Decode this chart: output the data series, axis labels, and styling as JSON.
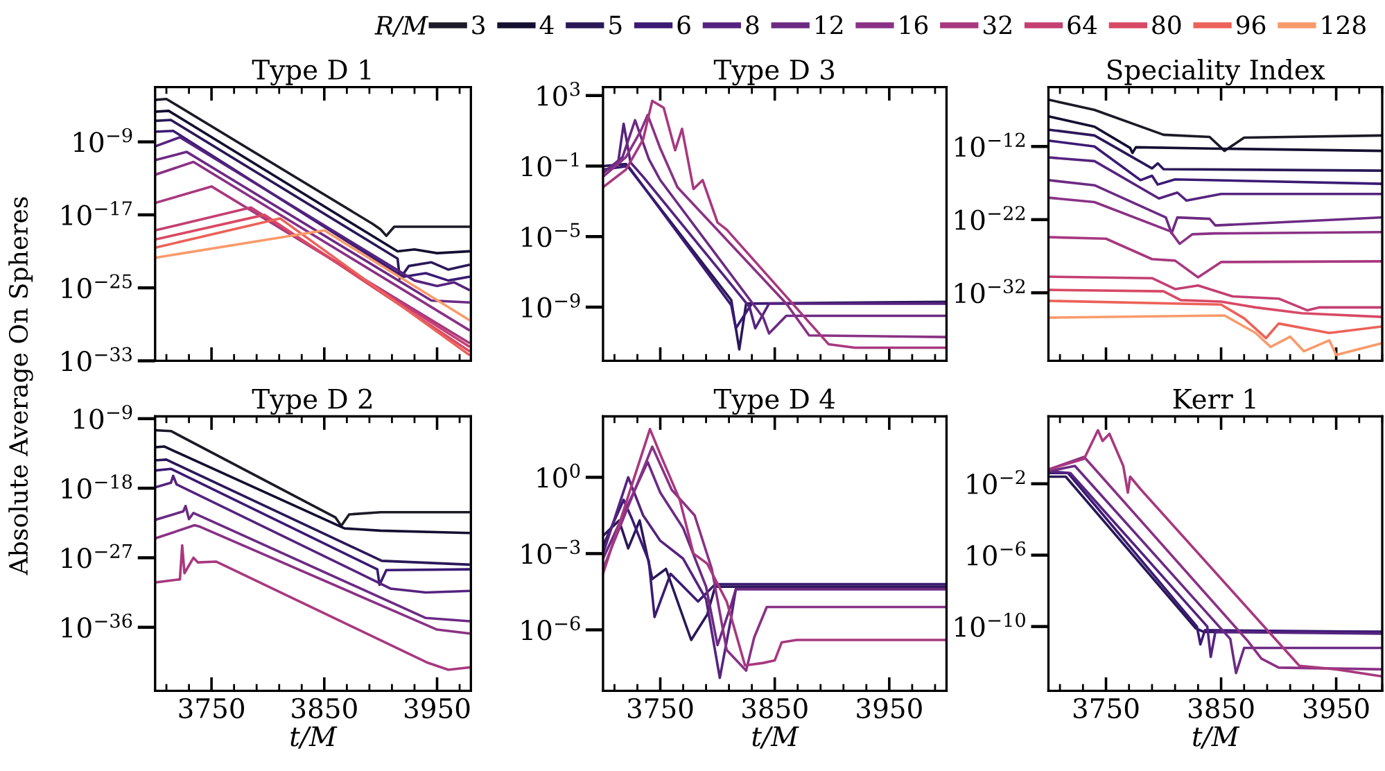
{
  "chart_data": [
    {
      "type": "line",
      "title": "Type D 1",
      "ylabel": "Absolute Average On Spheres",
      "legend": "top right",
      "legend_title": "R/M",
      "log": "y",
      "tick_labels": "y",
      "xlim": [
        3700,
        3980
      ],
      "xticks": [
        {
          "value": 3710,
          "label": null
        },
        {
          "value": 3730,
          "label": null
        },
        3750,
        {
          "value": 3770,
          "label": null
        },
        {
          "value": 3790,
          "label": null
        },
        {
          "value": 3810,
          "label": null
        },
        {
          "value": 3830,
          "label": null
        },
        3850,
        {
          "value": 3870,
          "label": null
        },
        {
          "value": 3890,
          "label": null
        },
        {
          "value": 3910,
          "label": null
        },
        {
          "value": 3930,
          "label": null
        },
        3950,
        {
          "value": 3970,
          "label": null
        }
      ],
      "ylim": [
        1e-33,
        0.001
      ],
      "yticks": [
        {
          "value": 1e-09,
          "label": "10$^{−9}$"
        },
        {
          "value": 1e-17,
          "label": "10$^{−17}$"
        },
        {
          "value": 1e-25,
          "label": "10$^{−25}$"
        },
        {
          "value": 1e-33,
          "label": "10$^{−33}$"
        }
      ],
      "series": [
        {
          "name": "3",
          "color": "#1c1a26",
          "x": [
            3700,
            3710,
            3893,
            3900,
            3905,
            3912,
            3978
          ],
          "values": [
            4e-05,
            5e-05,
            1e-18,
            2.5e-19,
            5e-20,
            5e-19,
            5e-19
          ]
        },
        {
          "name": "4",
          "color": "#130f30",
          "x": [
            3700,
            3712,
            3915,
            3930,
            3950,
            3978
          ],
          "values": [
            2e-06,
            2.5e-06,
            1e-21,
            1.6e-21,
            6.3e-22,
            1e-21
          ]
        },
        {
          "name": "5",
          "color": "#2a1858",
          "x": [
            3700,
            3714,
            3915,
            3917,
            3925,
            3945,
            3960,
            3978
          ],
          "values": [
            2e-07,
            2.5e-07,
            1.6e-22,
            1e-24,
            2.5e-23,
            6.3e-23,
            1e-23,
            3.2e-23
          ]
        },
        {
          "name": "6",
          "color": "#3b1a74",
          "x": [
            3700,
            3716,
            3920,
            3940,
            3960,
            3978
          ],
          "values": [
            1.3e-08,
            1.6e-08,
            1.6e-24,
            4e-24,
            6.3e-25,
            1.6e-24
          ]
        },
        {
          "name": "8",
          "color": "#55237f",
          "x": [
            3700,
            3722,
            3930,
            3950,
            3965,
            3978
          ],
          "values": [
            3.2e-10,
            3.2e-09,
            6.3e-25,
            1.6e-25,
            4e-25,
            6.3e-26
          ]
        },
        {
          "name": "12",
          "color": "#6c2a83",
          "x": [
            3700,
            3728,
            3945,
            3978
          ],
          "values": [
            1e-11,
            7.9e-11,
            4e-27,
            2.5e-27
          ]
        },
        {
          "name": "16",
          "color": "#8a3185",
          "x": [
            3700,
            3734,
            3978
          ],
          "values": [
            2.5e-13,
            6.3e-12,
            2.5e-30
          ]
        },
        {
          "name": "32",
          "color": "#a8387f",
          "x": [
            3700,
            3750,
            3978
          ],
          "values": [
            2e-16,
            1.3e-14,
            1e-31
          ]
        },
        {
          "name": "64",
          "color": "#c43f72",
          "x": [
            3700,
            3785,
            3978
          ],
          "values": [
            2e-19,
            6.3e-17,
            4e-32
          ]
        },
        {
          "name": "80",
          "color": "#d84965",
          "x": [
            3700,
            3797,
            3978
          ],
          "values": [
            2e-20,
            1e-17,
            1.3e-32
          ]
        },
        {
          "name": "96",
          "color": "#ec6158",
          "x": [
            3700,
            3811,
            3978
          ],
          "values": [
            2.5e-21,
            4e-18,
            5e-33
          ]
        },
        {
          "name": "128",
          "color": "#f99a6a",
          "x": [
            3700,
            3850,
            3978
          ],
          "values": [
            2e-22,
            2e-19,
            3.2e-29
          ]
        }
      ]
    },
    {
      "type": "line",
      "title": "Type D 3",
      "log": "y",
      "tick_labels": "y",
      "xlim": [
        3700,
        4000
      ],
      "xticks": [
        {
          "value": 3710,
          "label": null
        },
        {
          "value": 3730,
          "label": null
        },
        3750,
        {
          "value": 3770,
          "label": null
        },
        {
          "value": 3790,
          "label": null
        },
        {
          "value": 3810,
          "label": null
        },
        {
          "value": 3830,
          "label": null
        },
        3850,
        {
          "value": 3870,
          "label": null
        },
        {
          "value": 3890,
          "label": null
        },
        {
          "value": 3910,
          "label": null
        },
        {
          "value": 3930,
          "label": null
        },
        3950,
        {
          "value": 3970,
          "label": null
        },
        {
          "value": 3990,
          "label": null
        }
      ],
      "ylim": [
        9e-13,
        3000
      ],
      "yticks": [
        {
          "value": 1000,
          "label": "10$^{3}$"
        },
        {
          "value": 0.1,
          "label": "10$^{−1}$"
        },
        {
          "value": 1e-05,
          "label": "10$^{−5}$"
        },
        {
          "value": 1e-09,
          "label": "10$^{−9}$"
        }
      ],
      "series": [
        {
          "name": "5",
          "color": "#2a1858",
          "x": [
            3700,
            3720,
            3812,
            3819,
            3825,
            4000
          ],
          "values": [
            0.1,
            0.13,
            2.5e-09,
            4e-12,
            1.6e-09,
            2e-09
          ]
        },
        {
          "name": "6",
          "color": "#3b1a74",
          "x": [
            3700,
            3722,
            3812,
            3816,
            3830,
            4000
          ],
          "values": [
            0.063,
            0.1,
            1.3e-09,
            6.3e-11,
            1.6e-09,
            1.6e-09
          ]
        },
        {
          "name": "8",
          "color": "#55237f",
          "x": [
            3700,
            3713,
            3718,
            3724,
            3735,
            3828,
            3833,
            3845,
            4000
          ],
          "values": [
            0.05,
            0.13,
            25,
            0.16,
            0.025,
            1e-09,
            6.3e-11,
            1.6e-09,
            1.6e-09
          ]
        },
        {
          "name": "12",
          "color": "#6c2a83",
          "x": [
            3700,
            3717,
            3728,
            3740,
            3750,
            3840,
            3845,
            3860,
            4000
          ],
          "values": [
            0.04,
            0.32,
            40,
            0.25,
            0.016,
            2.5e-10,
            3.2e-11,
            3.2e-10,
            3.2e-10
          ]
        },
        {
          "name": "16",
          "color": "#8a3185",
          "x": [
            3700,
            3720,
            3733,
            3739,
            3750,
            3765,
            3860,
            3880,
            4000
          ],
          "values": [
            0.025,
            0.32,
            10,
            79,
            1,
            0.0063,
            1.6e-09,
            2.5e-11,
            2e-11
          ]
        },
        {
          "name": "32",
          "color": "#a8387f",
          "x": [
            3700,
            3720,
            3735,
            3743,
            3753,
            3763,
            3769,
            3779,
            3787,
            3800,
            3808,
            3897,
            3920,
            4000
          ],
          "values": [
            0.0063,
            0.063,
            3.2,
            500,
            200,
            0.79,
            13,
            0.005,
            0.016,
            6.3e-05,
            2.5e-05,
            7.9e-12,
            5e-12,
            5e-12
          ]
        }
      ]
    },
    {
      "type": "line",
      "title": "Speciality Index",
      "log": "y",
      "tick_labels": "y",
      "xlim": [
        3700,
        3990
      ],
      "xticks": [
        {
          "value": 3710,
          "label": null
        },
        {
          "value": 3730,
          "label": null
        },
        3750,
        {
          "value": 3770,
          "label": null
        },
        {
          "value": 3790,
          "label": null
        },
        {
          "value": 3810,
          "label": null
        },
        {
          "value": 3830,
          "label": null
        },
        3850,
        {
          "value": 3870,
          "label": null
        },
        {
          "value": 3890,
          "label": null
        },
        {
          "value": 3910,
          "label": null
        },
        {
          "value": 3930,
          "label": null
        },
        3950,
        {
          "value": 3970,
          "label": null
        },
        {
          "value": 3990,
          "label": null
        }
      ],
      "ylim": [
        5e-42,
        0.00013
      ],
      "yticks": [
        {
          "value": 1e-12,
          "label": "10$^{−12}$"
        },
        {
          "value": 1e-22,
          "label": "10$^{−22}$"
        },
        {
          "value": 1e-32,
          "label": "10$^{−32}$"
        }
      ],
      "series": [
        {
          "name": "3",
          "color": "#1c1a26",
          "x": [
            3700,
            3740,
            3800,
            3840,
            3853,
            3870,
            3990
          ],
          "values": [
            2.5e-06,
            1e-07,
            4e-11,
            2e-11,
            2.5e-13,
            1.6e-11,
            3.2e-11
          ]
        },
        {
          "name": "4",
          "color": "#130f30",
          "x": [
            3700,
            3740,
            3771,
            3773,
            3776,
            3850,
            3990
          ],
          "values": [
            1.3e-08,
            5e-10,
            6.3e-13,
            1.3e-13,
            7.9e-13,
            5e-13,
            2.5e-13
          ]
        },
        {
          "name": "5",
          "color": "#2a1858",
          "x": [
            3700,
            3740,
            3790,
            3795,
            3800,
            3990
          ],
          "values": [
            2e-10,
            3.2e-11,
            1e-15,
            5e-15,
            7.9e-16,
            5e-16
          ]
        },
        {
          "name": "6",
          "color": "#3b1a74",
          "x": [
            3700,
            3740,
            3780,
            3790,
            3795,
            3810,
            3990
          ],
          "values": [
            6.3e-12,
            1e-12,
            2.5e-17,
            1e-16,
            6.3e-18,
            3.2e-17,
            7.9e-18
          ]
        },
        {
          "name": "8",
          "color": "#55237f",
          "x": [
            3700,
            3740,
            3796,
            3812,
            3820,
            3850,
            3990
          ],
          "values": [
            3.2e-14,
            1e-14,
            7.9e-20,
            5e-19,
            4e-20,
            3.2e-19,
            3.2e-19
          ]
        },
        {
          "name": "12",
          "color": "#6c2a83",
          "x": [
            3700,
            3740,
            3802,
            3807,
            3812,
            3840,
            3845,
            3990
          ],
          "values": [
            2.5e-17,
            5e-18,
            2e-22,
            1.3e-24,
            2e-22,
            1.3e-22,
            1.6e-23,
            2e-22
          ]
        },
        {
          "name": "16",
          "color": "#8a3185",
          "x": [
            3700,
            3740,
            3806,
            3814,
            3825,
            3845,
            3990
          ],
          "values": [
            1e-19,
            2.5e-20,
            2.5e-24,
            5e-26,
            1e-24,
            1.3e-24,
            2e-24
          ]
        },
        {
          "name": "32",
          "color": "#a8387f",
          "x": [
            3700,
            3750,
            3790,
            3810,
            3830,
            3850,
            3990
          ],
          "values": [
            4e-25,
            2.5e-25,
            4e-28,
            2.5e-28,
            1.3e-30,
            1.6e-28,
            2e-28
          ]
        },
        {
          "name": "64",
          "color": "#c43f72",
          "x": [
            3700,
            3790,
            3810,
            3830,
            3860,
            3900,
            3925,
            3935,
            3990
          ],
          "values": [
            1.6e-30,
            1e-30,
            3.2e-32,
            1e-31,
            3.2e-33,
            1.6e-33,
            4e-35,
            1e-34,
            1e-34
          ]
        },
        {
          "name": "80",
          "color": "#d84965",
          "x": [
            3700,
            3800,
            3815,
            3850,
            3880,
            3920,
            3990
          ],
          "values": [
            2.5e-32,
            1.6e-32,
            1e-33,
            6.3e-34,
            1e-34,
            1.6e-35,
            5e-36
          ]
        },
        {
          "name": "96",
          "color": "#ec6158",
          "x": [
            3700,
            3850,
            3870,
            3889,
            3900,
            3944,
            3990
          ],
          "values": [
            7.9e-34,
            2.5e-34,
            3.2e-36,
            6.3e-39,
            6.3e-37,
            3.2e-38,
            2.5e-37
          ]
        },
        {
          "name": "128",
          "color": "#f99a6a",
          "x": [
            3700,
            3853,
            3880,
            3893,
            3910,
            3922,
            3944,
            3950,
            3990
          ],
          "values": [
            4e-36,
            7.9e-36,
            3.2e-38,
            4e-40,
            1e-38,
            1e-40,
            3.2e-39,
            3.2e-41,
            1.3e-39
          ]
        }
      ]
    },
    {
      "type": "line",
      "title": "Type D 2",
      "xlabel": "t/M",
      "log": "y",
      "xlim": [
        3700,
        3980
      ],
      "xticks": [
        {
          "value": 3710,
          "label": null
        },
        {
          "value": 3730,
          "label": null
        },
        3750,
        {
          "value": 3770,
          "label": null
        },
        {
          "value": 3790,
          "label": null
        },
        {
          "value": 3810,
          "label": null
        },
        {
          "value": 3830,
          "label": null
        },
        3850,
        {
          "value": 3870,
          "label": null
        },
        {
          "value": 3890,
          "label": null
        },
        {
          "value": 3910,
          "label": null
        },
        {
          "value": 3930,
          "label": null
        },
        3950,
        {
          "value": 3970,
          "label": null
        }
      ],
      "ylim": [
        6e-45,
        2e-09
      ],
      "yticks": [
        {
          "value": 1e-09,
          "label": "10$^{−9}$"
        },
        {
          "value": 1e-18,
          "label": "10$^{−18}$"
        },
        {
          "value": 1e-27,
          "label": "10$^{−27}$"
        },
        {
          "value": 1e-36,
          "label": "10$^{−36}$"
        }
      ],
      "series": [
        {
          "name": "3",
          "color": "#1c1a26",
          "x": [
            3700,
            3714,
            3860,
            3865,
            3872,
            3900,
            3978
          ],
          "values": [
            3.2e-11,
            2.5e-11,
            1.6e-22,
            1.3e-23,
            4e-22,
            7.9e-22,
            7.9e-22
          ]
        },
        {
          "name": "4",
          "color": "#130f30",
          "x": [
            3700,
            3708,
            3868,
            3900,
            3978
          ],
          "values": [
            2e-13,
            2.5e-13,
            6.3e-24,
            3.2e-24,
            1.6e-24
          ]
        },
        {
          "name": "5",
          "color": "#2a1858",
          "x": [
            3700,
            3710,
            3901,
            3978
          ],
          "values": [
            4e-15,
            5e-15,
            4e-28,
            1.3e-28
          ]
        },
        {
          "name": "6",
          "color": "#3b1a74",
          "x": [
            3700,
            3714,
            3897,
            3899,
            3905,
            3978
          ],
          "values": [
            2e-16,
            3.2e-16,
            3.2e-29,
            3.2e-31,
            2.5e-29,
            3.2e-29
          ]
        },
        {
          "name": "8",
          "color": "#55237f",
          "x": [
            3700,
            3714,
            3716,
            3719,
            3909,
            3940,
            3978
          ],
          "values": [
            1.3e-18,
            5e-18,
            4e-17,
            3.2e-18,
            1e-31,
            3.2e-32,
            5e-32
          ]
        },
        {
          "name": "12",
          "color": "#6c2a83",
          "x": [
            3700,
            3725,
            3727,
            3730,
            3734,
            3940,
            3978
          ],
          "values": [
            7.9e-23,
            1e-21,
            5e-21,
            1e-22,
            6.3e-22,
            1.6e-35,
            6.3e-36
          ]
        },
        {
          "name": "16",
          "color": "#8a3185",
          "x": [
            3700,
            3735,
            3740,
            3950,
            3978
          ],
          "values": [
            3.2e-25,
            1.6e-23,
            1e-23,
            5e-37,
            1.6e-37
          ]
        },
        {
          "name": "32",
          "color": "#a8387f",
          "x": [
            3700,
            3722,
            3724,
            3726,
            3734,
            3738,
            3754,
            3942,
            3960,
            3978
          ],
          "values": [
            6.3e-31,
            1.6e-30,
            4e-26,
            1e-29,
            1e-27,
            2.5e-28,
            3.2e-28,
            2.5e-41,
            3.2e-42,
            6.3e-42
          ]
        }
      ]
    },
    {
      "type": "line",
      "title": "Type D 4",
      "xlabel": "t/M",
      "log": "y",
      "xlim": [
        3700,
        4000
      ],
      "xticks": [
        {
          "value": 3710,
          "label": null
        },
        {
          "value": 3730,
          "label": null
        },
        3750,
        {
          "value": 3770,
          "label": null
        },
        {
          "value": 3790,
          "label": null
        },
        {
          "value": 3810,
          "label": null
        },
        {
          "value": 3830,
          "label": null
        },
        3850,
        {
          "value": 3870,
          "label": null
        },
        {
          "value": 3890,
          "label": null
        },
        {
          "value": 3910,
          "label": null
        },
        {
          "value": 3930,
          "label": null
        },
        3950,
        {
          "value": 3970,
          "label": null
        },
        {
          "value": 3990,
          "label": null
        }
      ],
      "ylim": [
        4e-09,
        250
      ],
      "yticks": [
        {
          "value": 1,
          "label": "10$^{0}$"
        },
        {
          "value": 0.001,
          "label": "10$^{−3}$"
        },
        {
          "value": 1e-06,
          "label": "10$^{−6}$"
        }
      ],
      "series": [
        {
          "name": "5",
          "color": "#2a1858",
          "x": [
            3700,
            3714,
            3722,
            3732,
            3743,
            3755,
            3777,
            3791,
            3798,
            4000
          ],
          "values": [
            0.005,
            0.02,
            0.0016,
            0.02,
            0.0001,
            0.00025,
            4e-07,
            4e-06,
            5e-05,
            5e-05
          ]
        },
        {
          "name": "6",
          "color": "#3b1a74",
          "x": [
            3700,
            3718,
            3725,
            3740,
            3745,
            3759,
            3783,
            3798,
            4000
          ],
          "values": [
            0.002,
            0.13,
            0.025,
            0.0005,
            3.2e-06,
            0.00016,
            1.3e-05,
            6.3e-05,
            6.3e-05
          ]
        },
        {
          "name": "8",
          "color": "#55237f",
          "x": [
            3700,
            3722,
            3735,
            3750,
            3770,
            3790,
            3802,
            3812,
            3816,
            4000
          ],
          "values": [
            0.001,
            1,
            0.032,
            0.0032,
            0.00063,
            1.6e-05,
            1.3e-08,
            3.2e-06,
            4e-05,
            4e-05
          ]
        },
        {
          "name": "12",
          "color": "#6c2a83",
          "x": [
            3700,
            3739,
            3750,
            3770,
            3790,
            3800,
            3812,
            3816,
            4000
          ],
          "values": [
            0.00063,
            4.0,
            0.25,
            0.01,
            5e-05,
            2.5e-07,
            1e-05,
            4e-05,
            4e-05
          ]
        },
        {
          "name": "16",
          "color": "#8a3185",
          "x": [
            3700,
            3743,
            3760,
            3780,
            3795,
            3808,
            3825,
            3832,
            3843,
            4000
          ],
          "values": [
            0.00025,
            16,
            0.32,
            0.032,
            0.00025,
            1.6e-07,
            2.5e-08,
            5e-07,
            7.9e-06,
            7.9e-06
          ]
        },
        {
          "name": "32",
          "color": "#a8387f",
          "x": [
            3700,
            3741,
            3751,
            3767,
            3779,
            3791,
            3808,
            3824,
            3840,
            3850,
            3856,
            3869,
            4000
          ],
          "values": [
            0.00016,
            79,
            6.3,
            0.13,
            0.001,
            0.0004,
            1.3e-05,
            4e-08,
            5e-08,
            6.3e-08,
            3.2e-07,
            4e-07,
            4e-07
          ]
        }
      ]
    },
    {
      "type": "line",
      "title": "Kerr 1",
      "xlabel": "t/M",
      "log": "y",
      "xlim": [
        3700,
        3990
      ],
      "xticks": [
        {
          "value": 3710,
          "label": null
        },
        {
          "value": 3730,
          "label": null
        },
        3750,
        {
          "value": 3770,
          "label": null
        },
        {
          "value": 3790,
          "label": null
        },
        {
          "value": 3810,
          "label": null
        },
        {
          "value": 3830,
          "label": null
        },
        3850,
        {
          "value": 3870,
          "label": null
        },
        {
          "value": 3890,
          "label": null
        },
        {
          "value": 3910,
          "label": null
        },
        {
          "value": 3930,
          "label": null
        },
        3950,
        {
          "value": 3970,
          "label": null
        },
        {
          "value": 3990,
          "label": null
        }
      ],
      "ylim": [
        2.5e-14,
        60
      ],
      "yticks": [
        {
          "value": 0.01,
          "label": "10$^{−2}$"
        },
        {
          "value": 1e-06,
          "label": "10$^{−6}$"
        },
        {
          "value": 1e-10,
          "label": "10$^{−10}$"
        }
      ],
      "series": [
        {
          "name": "5",
          "color": "#2a1858",
          "x": [
            3700,
            3715,
            3828,
            3835,
            3990
          ],
          "values": [
            0.025,
            0.025,
            7.9e-11,
            5e-11,
            5e-11
          ]
        },
        {
          "name": "6",
          "color": "#3b1a74",
          "x": [
            3700,
            3717,
            3829,
            3832,
            3836,
            3990
          ],
          "values": [
            0.04,
            0.04,
            1e-10,
            1e-11,
            6.3e-11,
            5e-11
          ]
        },
        {
          "name": "8",
          "color": "#55237f",
          "x": [
            3700,
            3719,
            3838,
            3841,
            3845,
            3990
          ],
          "values": [
            0.05,
            0.04,
            1e-10,
            2e-12,
            5e-11,
            4e-11
          ]
        },
        {
          "name": "12",
          "color": "#6c2a83",
          "x": [
            3700,
            3723,
            3858,
            3863,
            3870,
            3990
          ],
          "values": [
            0.05,
            0.1,
            2e-11,
            2.5e-13,
            6.3e-12,
            6.3e-12
          ]
        },
        {
          "name": "16",
          "color": "#8a3185",
          "x": [
            3700,
            3731,
            3873,
            3885,
            3900,
            3990
          ],
          "values": [
            0.063,
            0.32,
            1.6e-11,
            1.6e-12,
            5e-13,
            4e-13
          ]
        },
        {
          "name": "32",
          "color": "#a8387f",
          "x": [
            3700,
            3731,
            3743,
            3747,
            3753,
            3765,
            3769,
            3771,
            3780,
            3918,
            3950,
            3990
          ],
          "values": [
            0.063,
            0.25,
            10,
            2.5,
            6.3,
            0.1,
            0.0032,
            0.025,
            0.005,
            6.3e-13,
            4e-13,
            1.6e-13
          ]
        }
      ]
    }
  ]
}
